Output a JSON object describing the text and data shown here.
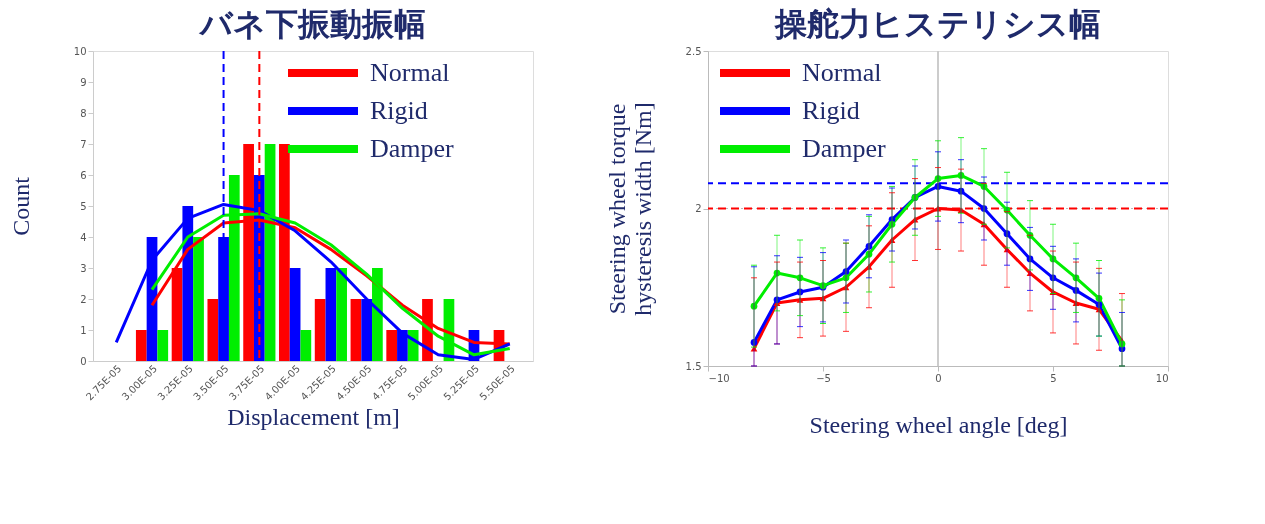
{
  "chart_data": [
    {
      "type": "bar",
      "title": "バネ下振動振幅",
      "xlabel": "Displacement [m]",
      "ylabel": "Count",
      "categories": [
        "2.75E-05",
        "3.00E-05",
        "3.25E-05",
        "3.50E-05",
        "3.75E-05",
        "4.00E-05",
        "4.25E-05",
        "4.50E-05",
        "4.75E-05",
        "5.00E-05",
        "5.25E-05",
        "5.50E-05"
      ],
      "ylim": [
        0,
        10
      ],
      "yticks": [
        0,
        1,
        2,
        3,
        4,
        5,
        6,
        7,
        8,
        9,
        10
      ],
      "grid": false,
      "legend": "top right",
      "series": [
        {
          "name": "Normal",
          "color": "#ff0000",
          "values": [
            0,
            1,
            3,
            2,
            7,
            7,
            2,
            2,
            1,
            2,
            0,
            1
          ]
        },
        {
          "name": "Rigid",
          "color": "#0000ff",
          "values": [
            0,
            4,
            5,
            4,
            6,
            3,
            3,
            2,
            1,
            0,
            1,
            0
          ]
        },
        {
          "name": "Damper",
          "color": "#00ee00",
          "values": [
            0,
            1,
            4,
            6,
            7,
            1,
            3,
            3,
            1,
            2,
            0,
            0
          ]
        },
        {
          "type": "line",
          "color": "#ff0000",
          "x": [
            "2.75E-05",
            "3.00E-05",
            "3.25E-05",
            "3.50E-05",
            "3.75E-05",
            "4.00E-05",
            "4.25E-05",
            "4.50E-05",
            "4.75E-05",
            "5.00E-05",
            "5.25E-05",
            "5.50E-05"
          ],
          "values": [
            null,
            1.8,
            3.6,
            4.45,
            4.55,
            4.3,
            3.6,
            2.75,
            1.8,
            1.05,
            0.6,
            0.55
          ]
        },
        {
          "type": "line",
          "color": "#0000ff",
          "x": [
            "2.75E-05",
            "3.00E-05",
            "3.25E-05",
            "3.50E-05",
            "3.75E-05",
            "4.00E-05",
            "4.25E-05",
            "4.50E-05",
            "4.75E-05",
            "5.00E-05",
            "5.25E-05",
            "5.50E-05"
          ],
          "values": [
            0.6,
            3.25,
            4.6,
            5.05,
            4.85,
            4.2,
            3.2,
            2.0,
            0.9,
            0.2,
            0.05,
            0.55
          ]
        },
        {
          "type": "line",
          "color": "#00ee00",
          "x": [
            "2.75E-05",
            "3.00E-05",
            "3.25E-05",
            "3.50E-05",
            "3.75E-05",
            "4.00E-05",
            "4.25E-05",
            "4.50E-05",
            "4.75E-05",
            "5.00E-05",
            "5.25E-05",
            "5.50E-05"
          ],
          "values": [
            null,
            2.3,
            4.0,
            4.7,
            4.75,
            4.45,
            3.75,
            2.8,
            1.7,
            0.8,
            0.2,
            0.4
          ]
        }
      ],
      "ref_lines": [
        {
          "axis": "x",
          "value": "3.50E-05",
          "color": "#0000ff",
          "line_style": "dashed"
        },
        {
          "axis": "x",
          "value": "3.75E-05",
          "color": "#ff0000",
          "line_style": "dashed"
        }
      ]
    },
    {
      "type": "line",
      "title": "操舵力ヒステリシス幅",
      "xlabel": "Steering wheel angle [deg]",
      "ylabel": "Steering wheel torque hysteresis width [Nm]",
      "x": [
        -8,
        -7,
        -6,
        -5,
        -4,
        -3,
        -2,
        -1,
        0,
        1,
        2,
        3,
        4,
        5,
        6,
        7,
        8
      ],
      "xlim": [
        -10,
        10
      ],
      "xticks": [
        -10,
        -5,
        0,
        5,
        10
      ],
      "ylim": [
        1.5,
        2.5
      ],
      "yticks": [
        1.5,
        2,
        2.5
      ],
      "grid": false,
      "legend": "top left",
      "line_style": "solid",
      "series": [
        {
          "name": "Normal",
          "color": "#ff0000",
          "marker": "triangle",
          "values": [
            1.555,
            1.7,
            1.71,
            1.715,
            1.75,
            1.815,
            1.9,
            1.965,
            2.0,
            1.995,
            1.95,
            1.87,
            1.795,
            1.735,
            1.7,
            1.68,
            1.58
          ],
          "errors": [
            [
              1.5,
              1.78
            ],
            0.13,
            0.12,
            0.12,
            0.14,
            0.13,
            0.15,
            0.13,
            0.13,
            0.13,
            0.13,
            0.12,
            0.12,
            0.13,
            0.13,
            0.13,
            [
              1.5,
              1.73
            ]
          ]
        },
        {
          "name": "Rigid",
          "color": "#0000ff",
          "marker": "circle",
          "values": [
            1.575,
            1.71,
            1.735,
            1.75,
            1.8,
            1.88,
            1.965,
            2.035,
            2.07,
            2.055,
            2.0,
            1.92,
            1.84,
            1.78,
            1.74,
            1.695,
            1.555
          ],
          "errors": [
            [
              1.5,
              1.815
            ],
            0.14,
            0.11,
            0.11,
            0.1,
            0.1,
            0.1,
            0.1,
            0.11,
            0.1,
            0.1,
            0.1,
            0.1,
            0.1,
            0.1,
            0.1,
            [
              1.5,
              1.67
            ]
          ]
        },
        {
          "name": "Damper",
          "color": "#00ee00",
          "marker": "circle",
          "values": [
            1.69,
            1.795,
            1.78,
            1.755,
            1.78,
            1.855,
            1.95,
            2.035,
            2.095,
            2.105,
            2.07,
            1.995,
            1.915,
            1.84,
            1.78,
            1.715,
            1.57
          ],
          "errors": [
            0.13,
            0.12,
            0.12,
            0.12,
            0.11,
            0.12,
            0.12,
            0.12,
            0.12,
            0.12,
            0.12,
            0.12,
            0.11,
            0.11,
            0.11,
            0.12,
            [
              1.5,
              1.71
            ]
          ]
        }
      ],
      "ref_lines": [
        {
          "axis": "x",
          "value": 0,
          "color": "#cccccc",
          "line_style": "solid"
        },
        {
          "axis": "y",
          "value": 2,
          "color": "#bbbbbb",
          "line_style": "dotted"
        },
        {
          "axis": "y",
          "value": 2,
          "color": "#ff0000",
          "line_style": "dashed"
        },
        {
          "axis": "y",
          "value": 2.08,
          "color": "#0000ff",
          "line_style": "dashed"
        }
      ]
    }
  ]
}
